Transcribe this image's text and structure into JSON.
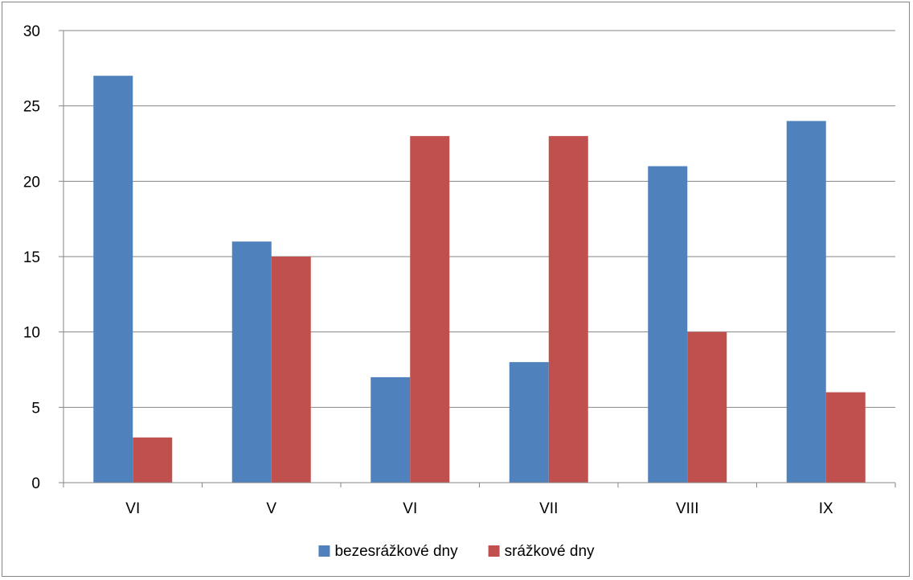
{
  "chart_data": {
    "type": "bar",
    "categories": [
      "VI",
      "V",
      "VI",
      "VII",
      "VIII",
      "IX"
    ],
    "series": [
      {
        "name": "bezesrážkové dny",
        "values": [
          27,
          16,
          7,
          8,
          21,
          24
        ],
        "color": "#4F81BD"
      },
      {
        "name": "srážkové dny",
        "values": [
          3,
          15,
          23,
          23,
          10,
          6
        ],
        "color": "#C0504D"
      }
    ],
    "ylim": [
      0,
      30
    ],
    "yticks": [
      0,
      5,
      10,
      15,
      20,
      25,
      30
    ],
    "grid": true,
    "legend_position": "bottom",
    "title": "",
    "xlabel": "",
    "ylabel": ""
  }
}
